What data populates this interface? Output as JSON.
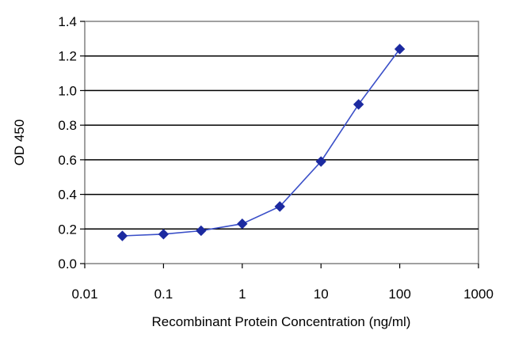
{
  "chart_data": {
    "type": "line",
    "title": "",
    "xlabel": "Recombinant Protein Concentration (ng/ml)",
    "ylabel": "OD 450",
    "x_scale": "log",
    "xlim": [
      0.01,
      1000
    ],
    "ylim": [
      0.0,
      1.4
    ],
    "x_ticks": [
      "0.01",
      "0.1",
      "1",
      "10",
      "100",
      "1000"
    ],
    "y_ticks": [
      "0.0",
      "0.2",
      "0.4",
      "0.6",
      "0.8",
      "1.0",
      "1.2",
      "1.4"
    ],
    "grid": "horizontal",
    "legend": "none",
    "series": [
      {
        "x": [
          0.03,
          0.1,
          0.3,
          1,
          3,
          10,
          30,
          100
        ],
        "y": [
          0.16,
          0.17,
          0.19,
          0.23,
          0.33,
          0.59,
          0.92,
          1.24
        ],
        "color": "#1c2aa0",
        "marker": "diamond"
      }
    ]
  }
}
